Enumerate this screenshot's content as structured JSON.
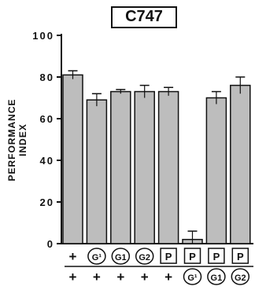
{
  "chart_data": {
    "type": "bar",
    "title": "C747",
    "ylabel": "PERFORMANCE INDEX",
    "xlabel": "",
    "ylim": [
      0,
      100
    ],
    "yticks": [
      "0",
      "20",
      "40",
      "60",
      "80",
      "100"
    ],
    "grid": false,
    "categories_row1": [
      "+",
      "G¹",
      "G1",
      "G2",
      "P",
      "P",
      "P",
      "P"
    ],
    "categories_row2": [
      "+",
      "+",
      "+",
      "+",
      "+",
      "G¹",
      "G1",
      "G2"
    ],
    "circled_row1": [
      false,
      true,
      true,
      true,
      false,
      false,
      false,
      false
    ],
    "boxed_row1": [
      false,
      false,
      false,
      false,
      true,
      true,
      true,
      true
    ],
    "circled_row2": [
      false,
      false,
      false,
      false,
      false,
      true,
      true,
      true
    ],
    "series": [
      {
        "values": [
          81,
          69,
          73,
          73,
          73,
          2,
          70,
          76
        ],
        "errors": [
          2,
          3,
          1,
          3,
          2,
          4,
          3,
          4
        ]
      }
    ],
    "colors": {
      "bar_fill": "#bdbdbd",
      "ink": "#111111"
    }
  }
}
